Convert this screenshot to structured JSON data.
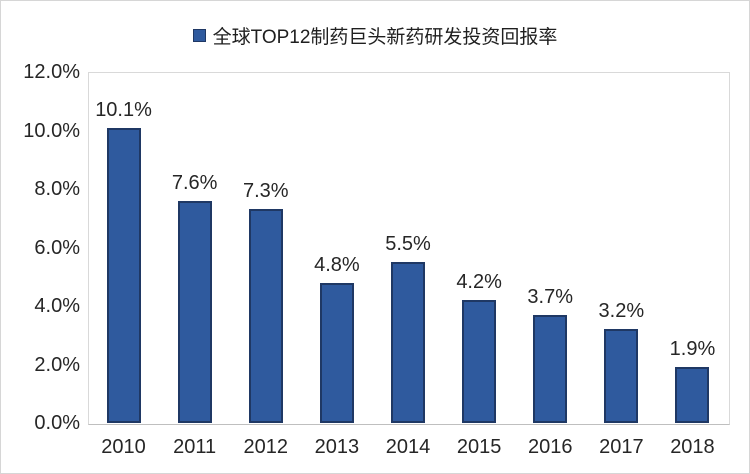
{
  "legend": {
    "label": "全球TOP12制药巨头新药研发投资回报率",
    "marker_color": "#2f5a9e",
    "marker_border_color": "#1f3864",
    "position": "top-center"
  },
  "chart_data": {
    "type": "bar",
    "title": "全球TOP12制药巨头新药研发投资回报率",
    "categories": [
      "2010",
      "2011",
      "2012",
      "2013",
      "2014",
      "2015",
      "2016",
      "2017",
      "2018"
    ],
    "values": [
      10.1,
      7.6,
      7.3,
      4.8,
      5.5,
      4.2,
      3.7,
      3.2,
      1.9
    ],
    "data_labels": [
      "10.1%",
      "7.6%",
      "7.3%",
      "4.8%",
      "5.5%",
      "4.2%",
      "3.7%",
      "3.2%",
      "1.9%"
    ],
    "xlabel": "",
    "ylabel": "",
    "ylim": [
      0,
      12
    ],
    "ytick_values": [
      0,
      2,
      4,
      6,
      8,
      10,
      12
    ],
    "ytick_labels": [
      "0.0%",
      "2.0%",
      "4.0%",
      "6.0%",
      "8.0%",
      "10.0%",
      "12.0%"
    ],
    "bar_color": "#2f5a9e",
    "bar_border_color": "#1f3864",
    "grid": false,
    "legend_position": "top",
    "plot_border_color": "#d9d9d9",
    "axis_line_color": "#bfbfbf"
  }
}
